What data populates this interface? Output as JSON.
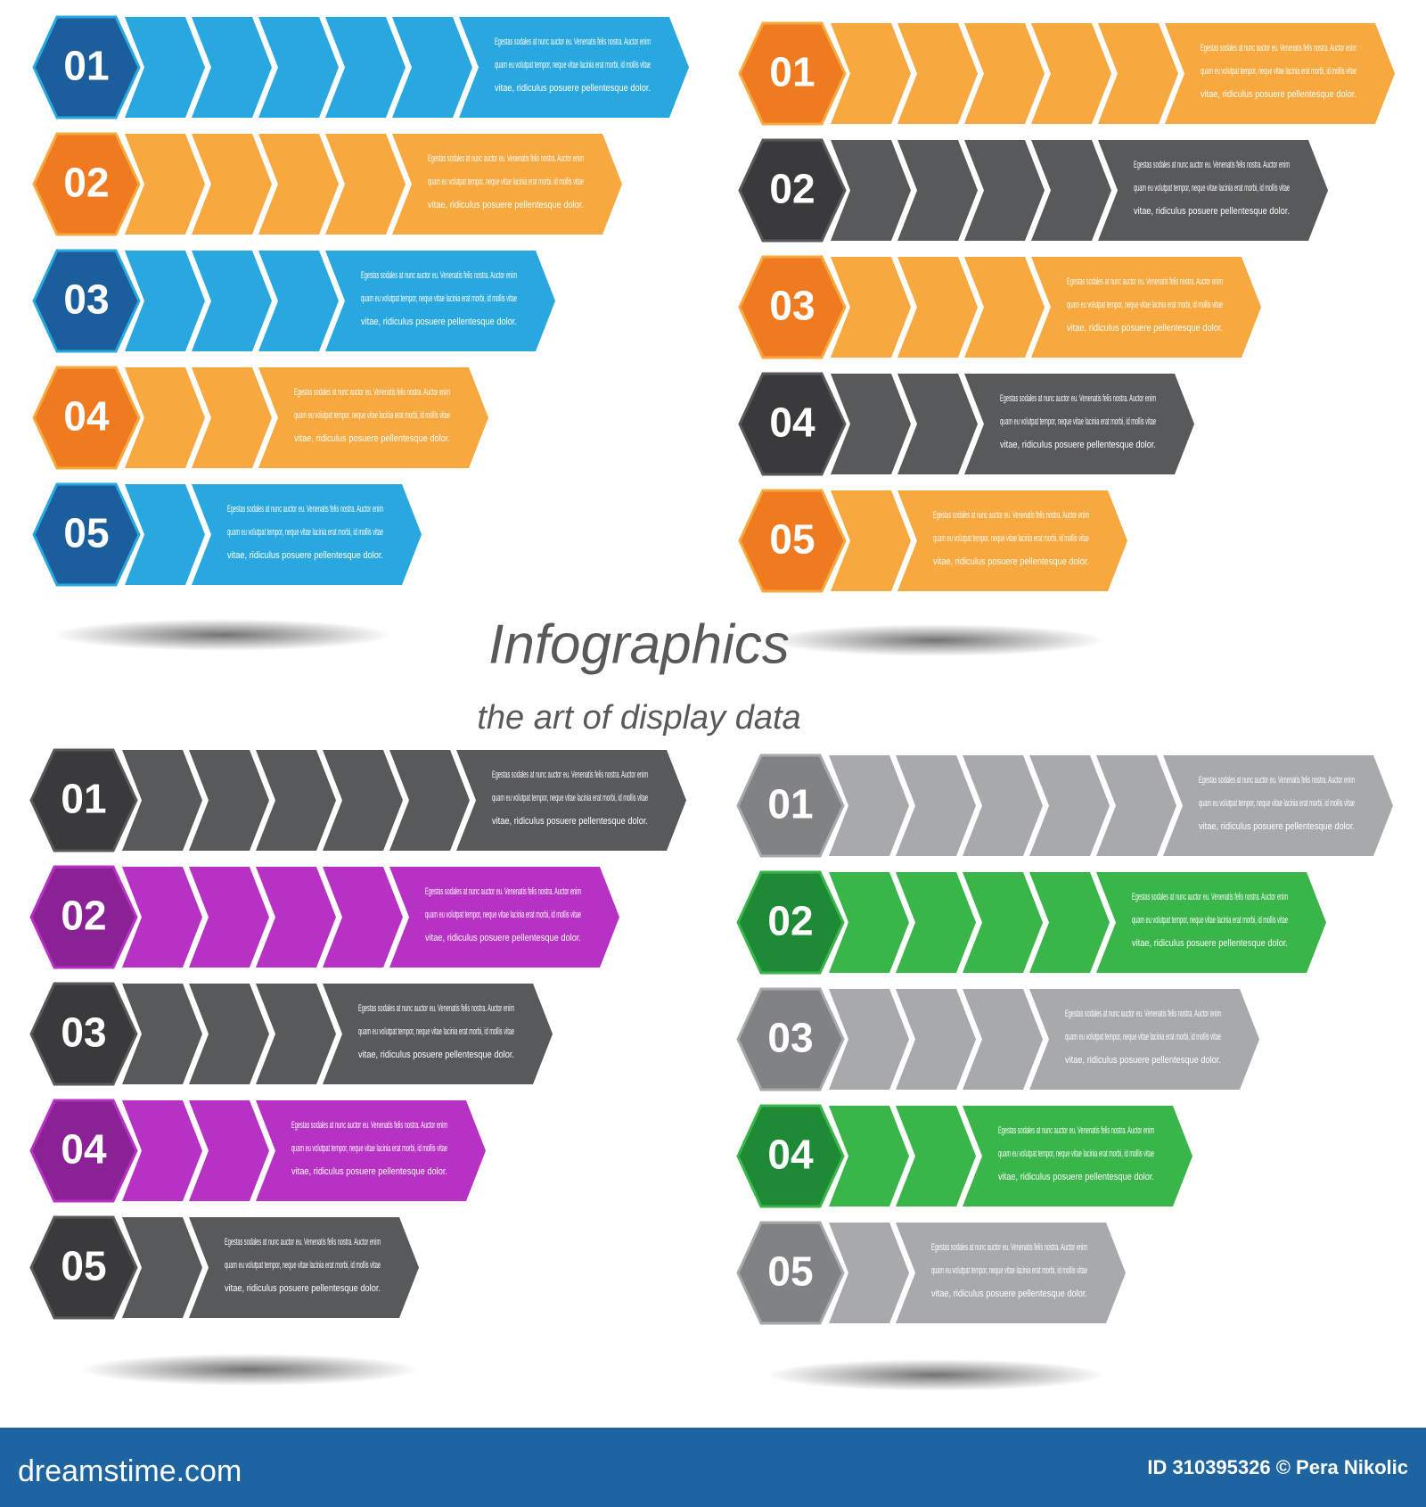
{
  "title": "Infographics",
  "subtitle": "the art of display data",
  "item_text": [
    "Egestas sodales at nunc auctor eu. Venenatis felis nostra. Auctor enim",
    "quam eu volutpat tempor, neque vitae lacinia erat morbi, id mollis vitae",
    "vitae, ridiculus posuere pellentesque dolor."
  ],
  "panels": [
    {
      "numbers": [
        "01",
        "02",
        "03",
        "04",
        "05"
      ]
    },
    {
      "numbers": [
        "01",
        "02",
        "03",
        "04",
        "05"
      ]
    },
    {
      "numbers": [
        "01",
        "02",
        "03",
        "04",
        "05"
      ]
    },
    {
      "numbers": [
        "01",
        "02",
        "03",
        "04",
        "05"
      ]
    }
  ],
  "footer": {
    "site": "dreamstime.com",
    "credit": "ID 310395326 © Pera Nikolic"
  }
}
